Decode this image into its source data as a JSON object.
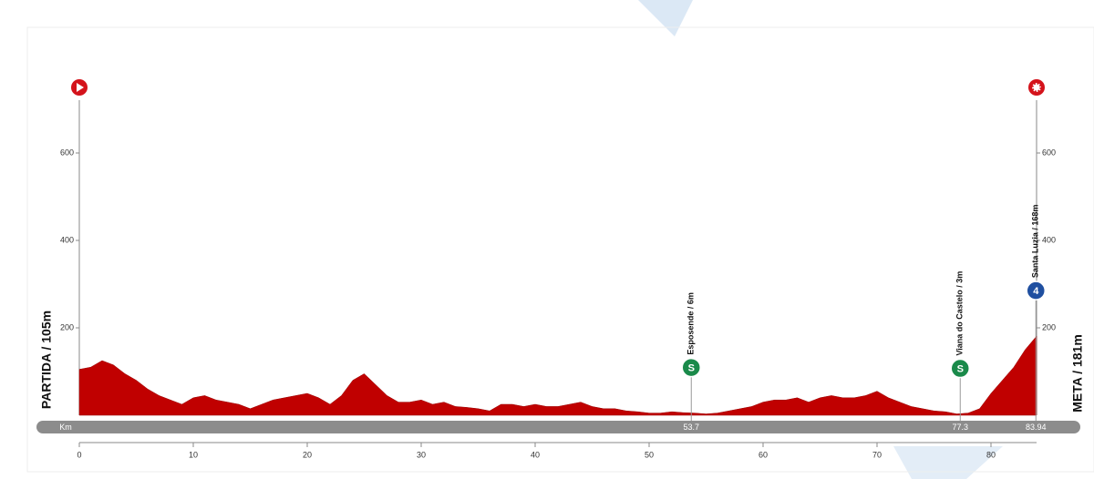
{
  "chart_data": {
    "type": "area",
    "start_label": "PARTIDA / 105m",
    "finish_label": "META / 181m",
    "x_label": "Km",
    "color": "#c00000",
    "x": [
      0,
      1,
      2,
      3,
      4,
      5,
      6,
      7,
      8,
      9,
      10,
      11,
      12,
      13,
      14,
      15,
      16,
      17,
      18,
      19,
      20,
      21,
      22,
      23,
      24,
      25,
      26,
      27,
      28,
      29,
      30,
      31,
      32,
      33,
      34,
      35,
      36,
      37,
      38,
      39,
      40,
      41,
      42,
      43,
      44,
      45,
      46,
      47,
      48,
      49,
      50,
      51,
      52,
      53,
      54,
      55,
      56,
      57,
      58,
      59,
      60,
      61,
      62,
      63,
      64,
      65,
      66,
      67,
      68,
      69,
      70,
      71,
      72,
      73,
      74,
      75,
      76,
      77,
      78,
      79,
      80,
      81,
      82,
      83,
      84
    ],
    "values": [
      105,
      110,
      125,
      115,
      95,
      80,
      60,
      45,
      35,
      25,
      40,
      45,
      35,
      30,
      25,
      15,
      25,
      35,
      40,
      45,
      50,
      40,
      25,
      45,
      80,
      95,
      70,
      45,
      30,
      30,
      35,
      25,
      30,
      20,
      18,
      15,
      10,
      25,
      25,
      20,
      25,
      20,
      20,
      25,
      30,
      20,
      15,
      15,
      10,
      8,
      5,
      5,
      8,
      6,
      5,
      3,
      5,
      10,
      15,
      20,
      30,
      35,
      35,
      40,
      30,
      40,
      45,
      40,
      40,
      45,
      55,
      40,
      30,
      20,
      15,
      10,
      8,
      3,
      5,
      15,
      50,
      80,
      110,
      150,
      181
    ],
    "xlim": [
      0,
      84
    ],
    "ylim": [
      0,
      750
    ],
    "xticks": [
      0,
      10,
      20,
      30,
      40,
      50,
      60,
      70,
      80
    ],
    "yticks": [
      200,
      400,
      600
    ],
    "markers": [
      {
        "name": "Esposende / 6m",
        "km": 53.7,
        "icon": "S"
      },
      {
        "name": "Viana do Castelo / 3m",
        "km": 77.3,
        "icon": "S"
      },
      {
        "name": "Santa Luzia / 168m",
        "km": 83.94,
        "icon": "4"
      }
    ]
  }
}
